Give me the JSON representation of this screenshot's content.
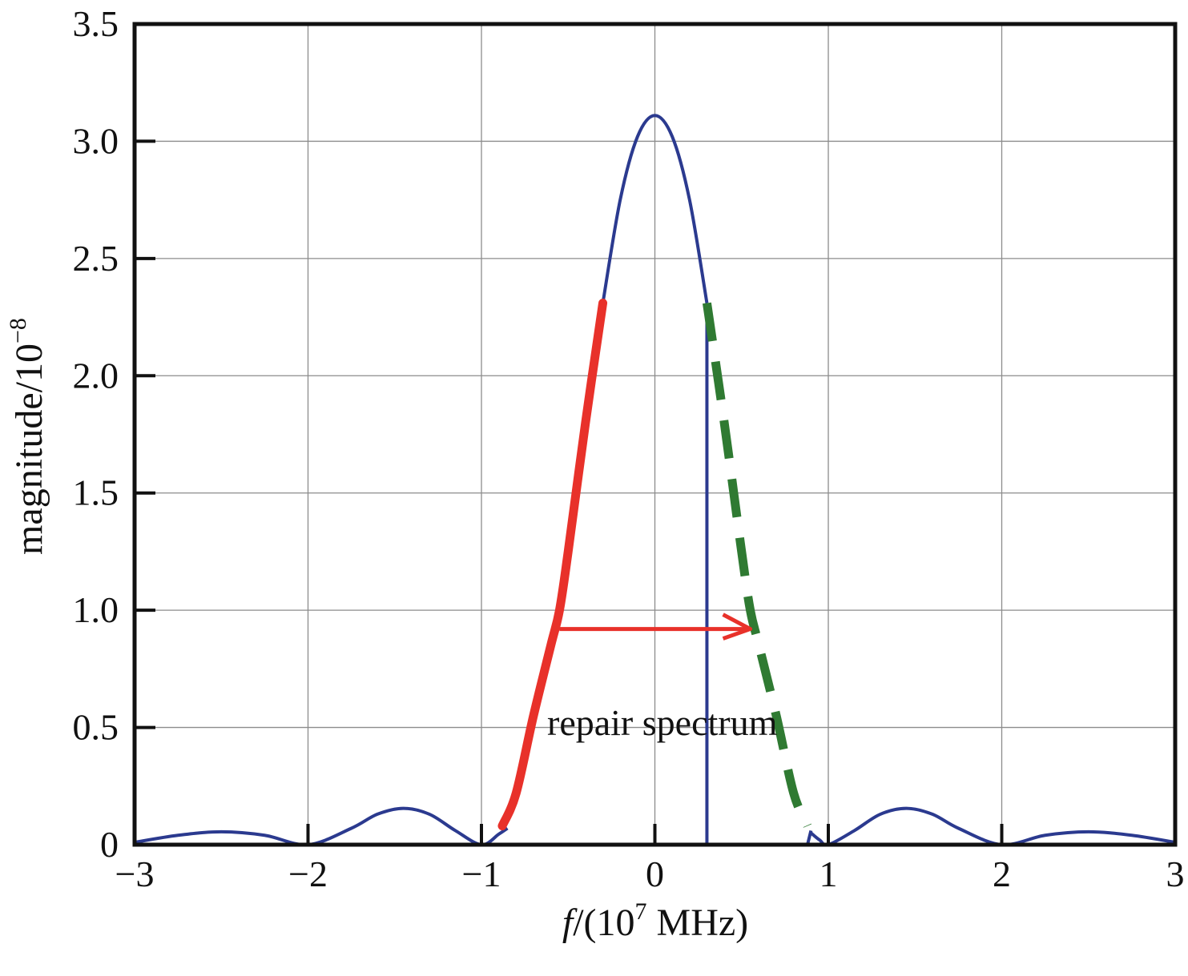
{
  "chart_data": {
    "type": "line",
    "xlabel": {
      "italic": "f",
      "text": "/(10",
      "sup": "7",
      "unit": " MHz)"
    },
    "ylabel": {
      "text": "magnitude/10",
      "sup": "−8"
    },
    "xlim": [
      -3,
      3
    ],
    "ylim": [
      0,
      3.5
    ],
    "xticks": [
      -3,
      -2,
      -1,
      0,
      1,
      2,
      3
    ],
    "xtick_labels": [
      "−3",
      "−2",
      "−1",
      "0",
      "1",
      "2",
      "3"
    ],
    "yticks": [
      0,
      0.5,
      1.0,
      1.5,
      2.0,
      2.5,
      3.0,
      3.5
    ],
    "ytick_labels": [
      "0",
      "0.5",
      "1.0",
      "1.5",
      "2.0",
      "2.5",
      "3.0",
      "3.5"
    ],
    "grid": true,
    "annotation": "repair spectrum",
    "colors": {
      "spectrum": "#2b3a8f",
      "repair_source": "#e8312a",
      "repaired": "#2f7a32",
      "arrow": "#e8312a"
    },
    "series": [
      {
        "role": "spectrum-left",
        "style": "solid-thin",
        "x": [
          -3.0,
          -2.75,
          -2.5,
          -2.25,
          -2.0,
          -1.75,
          -1.6,
          -1.45,
          -1.3,
          -1.15,
          -1.0,
          -0.9,
          -0.85
        ],
        "y": [
          0.01,
          0.04,
          0.055,
          0.04,
          0.0,
          0.07,
          0.13,
          0.155,
          0.13,
          0.06,
          0.0,
          0.045,
          0.07
        ]
      },
      {
        "role": "spectrum-top",
        "style": "solid-thin",
        "x": [
          -0.3,
          -0.2,
          -0.1,
          0.0,
          0.1,
          0.2,
          0.3
        ],
        "y": [
          2.31,
          2.75,
          3.02,
          3.11,
          3.02,
          2.75,
          2.31
        ]
      },
      {
        "role": "spectrum-right",
        "style": "solid-thin",
        "x": [
          0.9,
          0.95,
          1.0,
          1.15,
          1.3,
          1.45,
          1.6,
          1.75,
          2.0,
          2.25,
          2.5,
          2.75,
          3.0
        ],
        "y": [
          0.05,
          0.02,
          0.0,
          0.06,
          0.13,
          0.155,
          0.13,
          0.07,
          0.0,
          0.04,
          0.055,
          0.04,
          0.01
        ]
      },
      {
        "role": "notch-edge",
        "style": "solid-thin",
        "x": [
          0.3,
          0.3,
          0.88,
          0.9
        ],
        "y": [
          2.31,
          0.0,
          0.0,
          0.06
        ]
      },
      {
        "role": "repair-source",
        "style": "solid-thick",
        "x": [
          -0.88,
          -0.8,
          -0.7,
          -0.6,
          -0.55,
          -0.5,
          -0.4,
          -0.3
        ],
        "y": [
          0.08,
          0.22,
          0.55,
          0.85,
          1.0,
          1.25,
          1.8,
          2.31
        ]
      },
      {
        "role": "repaired",
        "style": "dashed-thick",
        "x": [
          0.3,
          0.4,
          0.5,
          0.55,
          0.6,
          0.7,
          0.8,
          0.88
        ],
        "y": [
          2.31,
          1.8,
          1.25,
          1.0,
          0.85,
          0.55,
          0.22,
          0.08
        ]
      }
    ],
    "arrow": {
      "from": [
        -0.55,
        0.92
      ],
      "to": [
        0.55,
        0.92
      ]
    }
  }
}
